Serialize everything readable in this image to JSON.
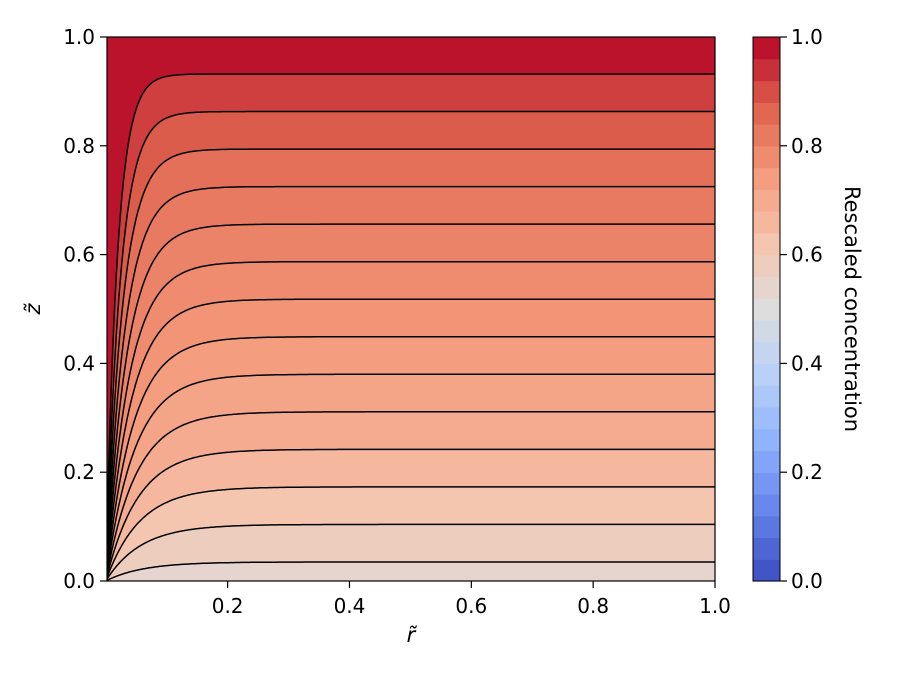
{
  "chart_data": {
    "type": "contour",
    "title": "",
    "xlabel": "r̃",
    "ylabel": "z̃",
    "xlim": [
      0.0,
      1.0
    ],
    "ylim": [
      0.0,
      1.0
    ],
    "x_ticks": [
      "0.2",
      "0.4",
      "0.6",
      "0.8",
      "1.0"
    ],
    "y_ticks": [
      "0.0",
      "0.2",
      "0.4",
      "0.6",
      "0.8",
      "1.0"
    ],
    "colormap": "coolwarm",
    "grid": false,
    "colorbar": {
      "label": "Rescaled concentration",
      "range": [
        0.0,
        1.0
      ],
      "ticks": [
        "0.0",
        "0.2",
        "0.4",
        "0.6",
        "0.8",
        "1.0"
      ],
      "levels": [
        0.0,
        0.04,
        0.08,
        0.12,
        0.16,
        0.2,
        0.24,
        0.28,
        0.32,
        0.36,
        0.4,
        0.44,
        0.48,
        0.52,
        0.56,
        0.6,
        0.64,
        0.68,
        0.72,
        0.76,
        0.8,
        0.84,
        0.88,
        0.92,
        0.96,
        1.0
      ]
    },
    "contour_lines": {
      "color": "#000000",
      "far_field_z": [
        0.035,
        0.104,
        0.173,
        0.242,
        0.311,
        0.38,
        0.449,
        0.518,
        0.587,
        0.656,
        0.725,
        0.794,
        0.863,
        0.932
      ]
    },
    "bands": [
      {
        "z_from": 0.0,
        "z_to": 0.035,
        "value": 0.54
      },
      {
        "z_from": 0.035,
        "z_to": 0.104,
        "value": 0.58
      },
      {
        "z_from": 0.104,
        "z_to": 0.173,
        "value": 0.62
      },
      {
        "z_from": 0.173,
        "z_to": 0.242,
        "value": 0.66
      },
      {
        "z_from": 0.242,
        "z_to": 0.311,
        "value": 0.7
      },
      {
        "z_from": 0.311,
        "z_to": 0.38,
        "value": 0.72
      },
      {
        "z_from": 0.38,
        "z_to": 0.449,
        "value": 0.74
      },
      {
        "z_from": 0.449,
        "z_to": 0.518,
        "value": 0.76
      },
      {
        "z_from": 0.518,
        "z_to": 0.587,
        "value": 0.78
      },
      {
        "z_from": 0.587,
        "z_to": 0.656,
        "value": 0.8
      },
      {
        "z_from": 0.656,
        "z_to": 0.725,
        "value": 0.82
      },
      {
        "z_from": 0.725,
        "z_to": 0.794,
        "value": 0.84
      },
      {
        "z_from": 0.794,
        "z_to": 0.863,
        "value": 0.88
      },
      {
        "z_from": 0.863,
        "z_to": 0.932,
        "value": 0.92
      },
      {
        "z_from": 0.932,
        "z_to": 1.0,
        "value": 0.98
      }
    ]
  }
}
